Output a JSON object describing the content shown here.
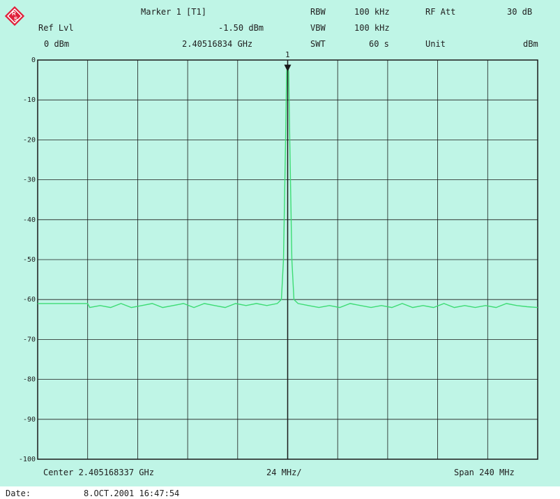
{
  "header": {
    "ref_lvl_label": "Ref Lvl",
    "ref_lvl_value": "0 dBm",
    "marker_title": "Marker 1 [T1]",
    "marker_level": "-1.50 dBm",
    "marker_freq": "2.40516834 GHz",
    "rbw_label": "RBW",
    "rbw_value": "100 kHz",
    "vbw_label": "VBW",
    "vbw_value": "100 kHz",
    "swt_label": "SWT",
    "swt_value": "60 s",
    "rf_att_label": "RF Att",
    "rf_att_value": "30 dB",
    "unit_label": "Unit",
    "unit_value": "dBm",
    "marker_tag": "1"
  },
  "footer": {
    "center": "Center 2.405168337 GHz",
    "div": "24 MHz/",
    "span": "Span 240 MHz",
    "date_label": "Date:",
    "date_value": "8.OCT.2001  16:47:54"
  },
  "colors": {
    "background": "#bff5e6",
    "trace": "#3ddc74",
    "grid": "#1a1a1a",
    "logo": "#e0203a"
  },
  "chart_data": {
    "type": "line",
    "x_center_ghz": 2.405168337,
    "x_span_mhz": 240,
    "x_divisions": 10,
    "ylim": [
      -100,
      0
    ],
    "y_ticks": [
      "0",
      "-10",
      "-20",
      "-30",
      "-40",
      "-50",
      "-60",
      "-70",
      "-80",
      "-90",
      "-100"
    ],
    "grid": true,
    "marker": {
      "x_ghz": 2.40516834,
      "y_dbm": -1.5
    },
    "series": [
      {
        "x_offset_mhz": [
          -120,
          -96,
          -95,
          -90,
          -85,
          -80,
          -75,
          -70,
          -65,
          -60,
          -55,
          -50,
          -45,
          -40,
          -35,
          -30,
          -25,
          -20,
          -15,
          -10,
          -5,
          -3,
          -2,
          -1,
          -0.5,
          0,
          0.5,
          1,
          2,
          3,
          5,
          10,
          15,
          20,
          25,
          30,
          35,
          40,
          45,
          50,
          55,
          60,
          65,
          70,
          75,
          80,
          85,
          90,
          95,
          100,
          105,
          110,
          115,
          120
        ],
        "values": [
          -61,
          -61,
          -62,
          -61.5,
          -62,
          -61,
          -62,
          -61.5,
          -61,
          -62,
          -61.5,
          -61,
          -62,
          -61,
          -61.5,
          -62,
          -61,
          -61.5,
          -61,
          -61.5,
          -61,
          -60,
          -50,
          -20,
          -3,
          -1.5,
          -3,
          -20,
          -50,
          -60,
          -61,
          -61.5,
          -62,
          -61.5,
          -62,
          -61,
          -61.5,
          -62,
          -61.5,
          -62,
          -61,
          -62,
          -61.5,
          -62,
          -61,
          -62,
          -61.5,
          -62,
          -61.5,
          -62,
          -61,
          -61.5,
          -61.8,
          -62
        ]
      }
    ]
  }
}
